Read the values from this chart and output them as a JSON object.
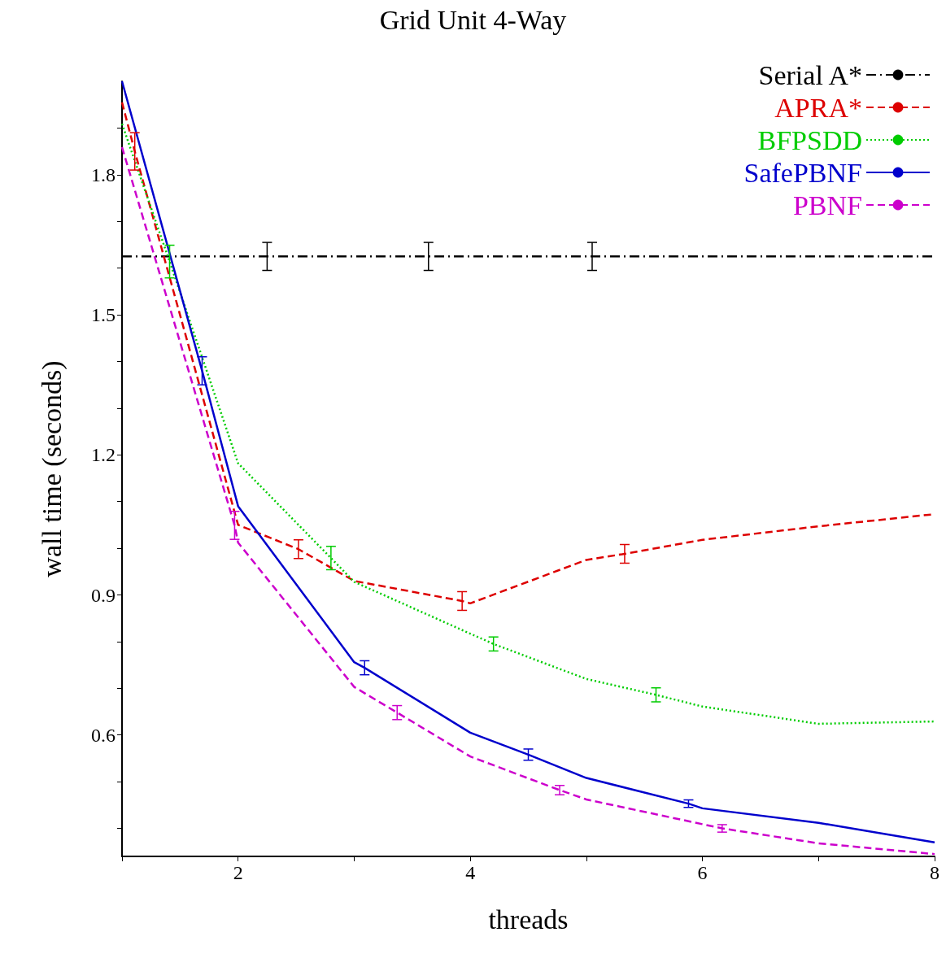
{
  "chart_data": {
    "type": "line",
    "title": "Grid Unit 4-Way",
    "xlabel": "threads",
    "ylabel": "wall time (seconds)",
    "xlim": [
      1,
      8
    ],
    "ylim": [
      0.34,
      2.0
    ],
    "xticks": [
      {
        "value": 1,
        "label": null
      },
      2,
      {
        "value": 3,
        "label": null
      },
      4,
      {
        "value": 5,
        "label": null
      },
      6,
      {
        "value": 7,
        "label": null
      },
      8
    ],
    "yticks": [
      {
        "value": 0.4,
        "label": null
      },
      {
        "value": 0.5,
        "label": null
      },
      0.6,
      {
        "value": 0.7,
        "label": null
      },
      {
        "value": 0.8,
        "label": null
      },
      0.9,
      {
        "value": 1.0,
        "label": null
      },
      {
        "value": 1.1,
        "label": null
      },
      1.2,
      {
        "value": 1.3,
        "label": null
      },
      {
        "value": 1.4,
        "label": null
      },
      1.5,
      {
        "value": 1.6,
        "label": null
      },
      {
        "value": 1.7,
        "label": null
      },
      1.8,
      {
        "value": 1.9,
        "label": null
      }
    ],
    "legend": "top right",
    "grid": false,
    "marker": "none",
    "series": [
      {
        "name": "Serial A*",
        "color": "#000000",
        "line_style": "dashdot",
        "x": [
          1,
          2.25,
          3.64,
          5.05,
          8
        ],
        "values": [
          1.625,
          1.625,
          1.625,
          1.625,
          1.625
        ],
        "errors": [
          null,
          0.03,
          0.03,
          0.03,
          null
        ]
      },
      {
        "name": "APRA*",
        "color": "#dd0000",
        "line_style": "dashed",
        "x": [
          1,
          1.11,
          2,
          2.52,
          3,
          3.93,
          4,
          5,
          5.33,
          6,
          7,
          8
        ],
        "values": [
          1.955,
          1.85,
          1.05,
          0.998,
          0.93,
          0.887,
          0.882,
          0.975,
          0.988,
          1.018,
          1.047,
          1.073
        ],
        "errors": [
          null,
          0.04,
          null,
          0.02,
          null,
          0.02,
          null,
          null,
          0.02,
          null,
          null,
          null
        ]
      },
      {
        "name": "BFPSDD",
        "color": "#00cc00",
        "line_style": "dotted",
        "x": [
          1,
          1.41,
          2,
          2.8,
          3,
          4,
          4.2,
          5,
          5.6,
          6,
          7,
          8
        ],
        "values": [
          1.909,
          1.614,
          1.182,
          0.979,
          0.928,
          0.817,
          0.795,
          0.72,
          0.686,
          0.661,
          0.624,
          0.629
        ],
        "errors": [
          null,
          0.035,
          null,
          0.025,
          null,
          null,
          0.015,
          null,
          0.015,
          null,
          null,
          null
        ]
      },
      {
        "name": "SafePBNF",
        "color": "#0000cc",
        "line_style": "solid",
        "x": [
          1,
          1.69,
          2,
          3,
          3.09,
          4,
          4.5,
          5,
          5.88,
          6,
          7,
          8
        ],
        "values": [
          2.0,
          1.38,
          1.09,
          0.756,
          0.744,
          0.605,
          0.558,
          0.508,
          0.453,
          0.443,
          0.412,
          0.37
        ],
        "errors": [
          null,
          0.03,
          null,
          null,
          0.015,
          null,
          0.012,
          null,
          0.008,
          null,
          null,
          null
        ]
      },
      {
        "name": "PBNF",
        "color": "#cc00cc",
        "line_style": "dashed",
        "x": [
          1,
          1.97,
          2,
          3,
          3.37,
          4,
          4.77,
          5,
          6,
          6.17,
          7,
          8
        ],
        "values": [
          1.859,
          1.049,
          1.012,
          0.703,
          0.648,
          0.554,
          0.482,
          0.462,
          0.409,
          0.4,
          0.368,
          0.345
        ],
        "errors": [
          null,
          0.03,
          null,
          null,
          0.015,
          null,
          0.01,
          null,
          null,
          0.008,
          null,
          null
        ]
      }
    ]
  }
}
